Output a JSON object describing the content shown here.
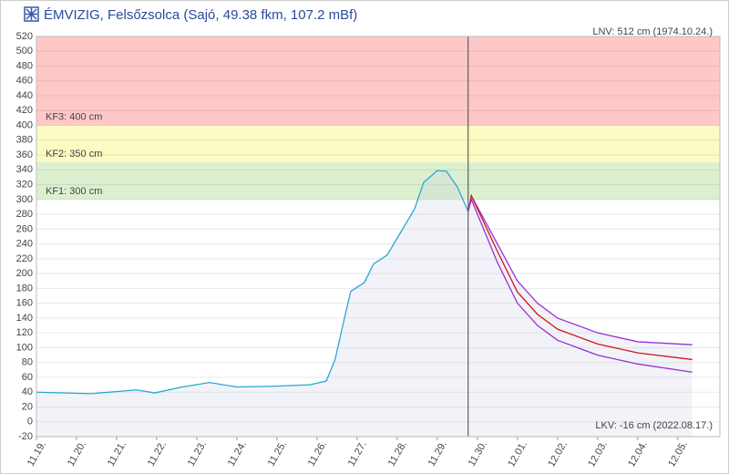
{
  "chart_data": {
    "type": "line",
    "title": "ÉMVIZIG, Felsőzsolca (Sajó, 49.38 fkm, 107.2 mBf)",
    "top_right_label": "LNV: 512 cm (1974.10.24.)",
    "bottom_right_label": "LKV: -16 cm (2022.08.17.)",
    "xlim": [
      0,
      17.05
    ],
    "ylim": [
      -20,
      520
    ],
    "yticks": [
      -20,
      0,
      20,
      40,
      60,
      80,
      100,
      120,
      140,
      160,
      180,
      200,
      220,
      240,
      260,
      280,
      300,
      320,
      340,
      360,
      380,
      400,
      420,
      440,
      460,
      480,
      500,
      520
    ],
    "xticks": [
      {
        "value": 0,
        "label": "11.19."
      },
      {
        "value": 1,
        "label": "11.20."
      },
      {
        "value": 2,
        "label": "11.21."
      },
      {
        "value": 3,
        "label": "11.22."
      },
      {
        "value": 4,
        "label": "11.23."
      },
      {
        "value": 5,
        "label": "11.24."
      },
      {
        "value": 6,
        "label": "11.25."
      },
      {
        "value": 7,
        "label": "11.26."
      },
      {
        "value": 8,
        "label": "11.27."
      },
      {
        "value": 9,
        "label": "11.28."
      },
      {
        "value": 10,
        "label": "11.29."
      },
      {
        "value": 11,
        "label": "11.30."
      },
      {
        "value": 12,
        "label": "12.01."
      },
      {
        "value": 13,
        "label": "12.02."
      },
      {
        "value": 14,
        "label": "12.03."
      },
      {
        "value": 15,
        "label": "12.04."
      },
      {
        "value": 16,
        "label": "12.05."
      }
    ],
    "zones": [
      {
        "label": "KF3: 400 cm",
        "from": 400,
        "to": 520,
        "color": "#ffc8c8"
      },
      {
        "label": "KF2: 350 cm",
        "from": 350,
        "to": 400,
        "color": "#fbfbc4"
      },
      {
        "label": "KF1: 300 cm",
        "from": 300,
        "to": 350,
        "color": "#dcf0d0"
      }
    ],
    "now_x": 10.77,
    "series": [
      {
        "color": "#2aa6d8",
        "x": [
          0,
          1.36,
          2.5,
          2.95,
          3.64,
          4.32,
          5,
          5.91,
          6.82,
          7.23,
          7.45,
          7.68,
          7.84,
          8.18,
          8.41,
          8.75,
          9.09,
          9.43,
          9.66,
          10,
          10.23,
          10.5,
          10.77
        ],
        "values": [
          40,
          38,
          43,
          39,
          47,
          53,
          47,
          48,
          50,
          55,
          84,
          139,
          176,
          188,
          213,
          225,
          256,
          287,
          323,
          339,
          338,
          317,
          284
        ]
      },
      {
        "color": "#9b30d8",
        "x": [
          10.77,
          10.85,
          11.5,
          12,
          12.5,
          13,
          14,
          15,
          16.36
        ],
        "values": [
          284,
          305,
          240,
          190,
          160,
          140,
          120,
          108,
          104
        ]
      },
      {
        "color": "#d01818",
        "x": [
          10.77,
          10.85,
          11.5,
          12,
          12.5,
          13,
          14,
          15,
          16.36
        ],
        "values": [
          284,
          305,
          230,
          175,
          145,
          125,
          105,
          93,
          84
        ]
      },
      {
        "color": "#9b30d8",
        "x": [
          10.77,
          10.85,
          11.5,
          12,
          12.5,
          13,
          14,
          15,
          16.36
        ],
        "values": [
          284,
          300,
          215,
          160,
          130,
          110,
          90,
          78,
          67
        ]
      }
    ]
  }
}
